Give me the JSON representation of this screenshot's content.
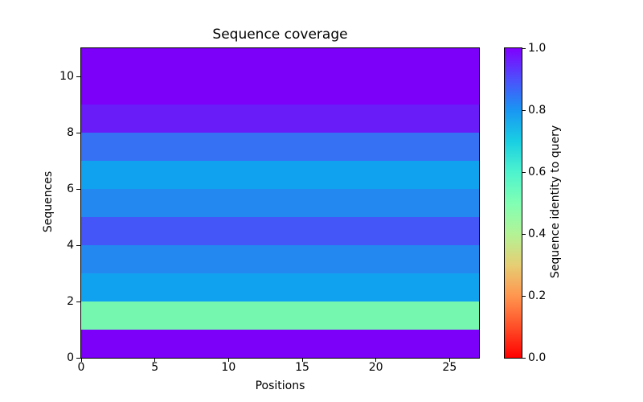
{
  "title": "Sequence coverage",
  "axes": {
    "xlabel": "Positions",
    "ylabel": "Sequences"
  },
  "colorbar": {
    "label": "Sequence identity to query"
  },
  "chart_data": {
    "type": "heatmap",
    "title": "Sequence coverage",
    "xlabel": "Positions",
    "ylabel": "Sequences",
    "xlim": [
      0,
      27
    ],
    "ylim": [
      0,
      11
    ],
    "x_ticks": [
      0,
      5,
      10,
      15,
      20,
      25
    ],
    "x_tick_labels": [
      "0",
      "5",
      "10",
      "15",
      "20",
      "25"
    ],
    "y_ticks": [
      0,
      2,
      4,
      6,
      8,
      10
    ],
    "y_tick_labels": [
      "0",
      "2",
      "4",
      "6",
      "8",
      "10"
    ],
    "n_sequences": 11,
    "n_positions": 27,
    "grid": false,
    "colormap": "rainbow reversed (1.0 = purple, 0.0 = red)",
    "colorbar_label": "Sequence identity to query",
    "colorbar_ticks": [
      0.0,
      0.2,
      0.4,
      0.6,
      0.8,
      1.0
    ],
    "colorbar_tick_labels": [
      "0.0",
      "0.2",
      "0.4",
      "0.6",
      "0.8",
      "1.0"
    ],
    "colorbar_gradient_bottom_to_top": [
      "#FF0000",
      "#FF4F28",
      "#FF964F",
      "#E6CE74",
      "#B3F396",
      "#80FFB4",
      "#4DF3CE",
      "#19CEE3",
      "#1996F3",
      "#4D4FFC",
      "#8000FF"
    ],
    "rows": [
      {
        "sequence_index": 0,
        "identity_to_query": 1.0,
        "color": "#7C00F9"
      },
      {
        "sequence_index": 1,
        "identity_to_query": 0.5,
        "color": "#76F7B0"
      },
      {
        "sequence_index": 2,
        "identity_to_query": 0.78,
        "color": "#11A2EF"
      },
      {
        "sequence_index": 3,
        "identity_to_query": 0.82,
        "color": "#2389F0"
      },
      {
        "sequence_index": 4,
        "identity_to_query": 0.89,
        "color": "#4456F8"
      },
      {
        "sequence_index": 5,
        "identity_to_query": 0.82,
        "color": "#2389F0"
      },
      {
        "sequence_index": 6,
        "identity_to_query": 0.78,
        "color": "#11A2EF"
      },
      {
        "sequence_index": 7,
        "identity_to_query": 0.86,
        "color": "#3670F3"
      },
      {
        "sequence_index": 8,
        "identity_to_query": 0.96,
        "color": "#6A1CF8"
      },
      {
        "sequence_index": 9,
        "identity_to_query": 1.0,
        "color": "#7C00F9"
      },
      {
        "sequence_index": 10,
        "identity_to_query": 1.0,
        "color": "#7C00F9"
      }
    ]
  }
}
